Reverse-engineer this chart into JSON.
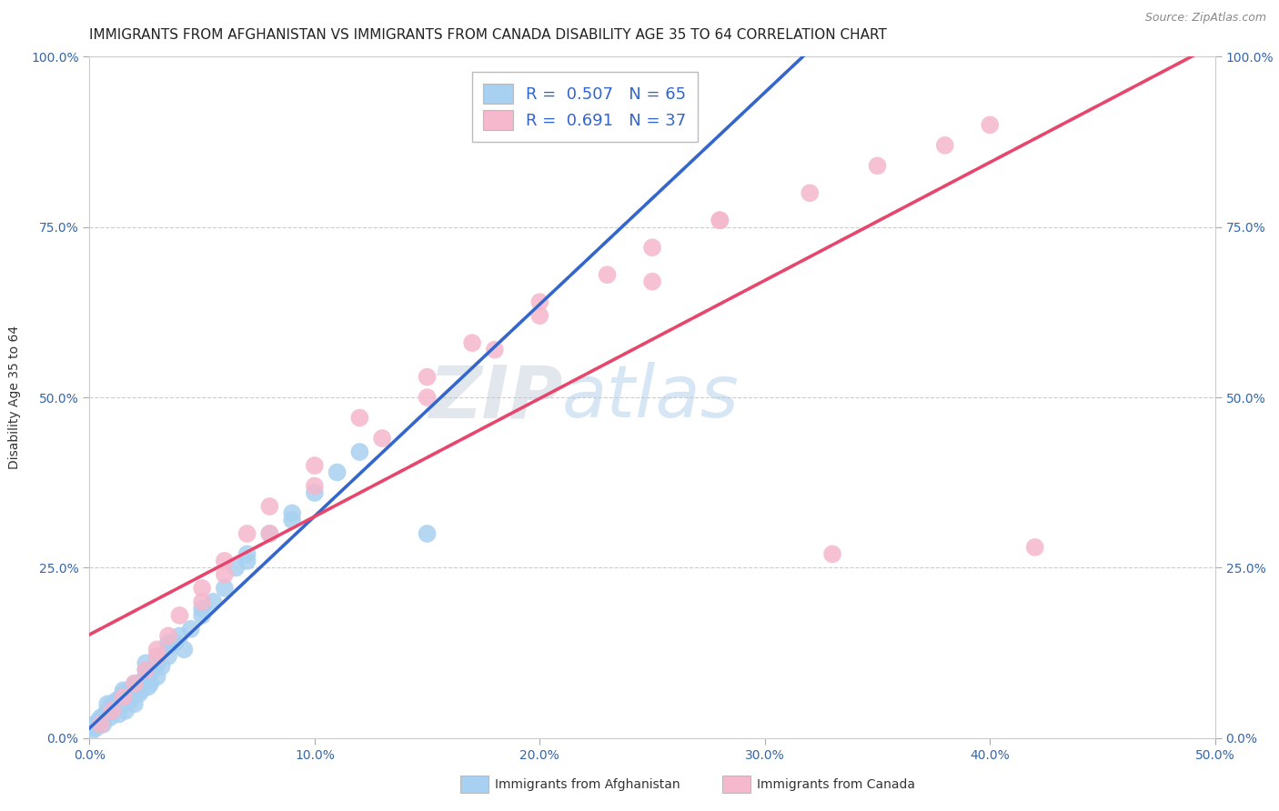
{
  "title": "IMMIGRANTS FROM AFGHANISTAN VS IMMIGRANTS FROM CANADA DISABILITY AGE 35 TO 64 CORRELATION CHART",
  "source": "Source: ZipAtlas.com",
  "yaxis_label": "Disability Age 35 to 64",
  "legend_bottom": [
    "Immigrants from Afghanistan",
    "Immigrants from Canada"
  ],
  "series": [
    {
      "name": "Immigrants from Afghanistan",
      "R": 0.507,
      "N": 65,
      "scatter_color": "#a8d0f0",
      "line_color": "#3366cc",
      "x": [
        0.1,
        0.2,
        0.3,
        0.4,
        0.5,
        0.6,
        0.7,
        0.8,
        0.9,
        1.0,
        1.0,
        1.1,
        1.2,
        1.3,
        1.4,
        1.5,
        1.5,
        1.6,
        1.7,
        1.8,
        1.9,
        2.0,
        2.0,
        2.1,
        2.2,
        2.3,
        2.4,
        2.5,
        2.6,
        2.7,
        2.8,
        3.0,
        3.0,
        3.2,
        3.5,
        3.5,
        3.8,
        4.0,
        4.2,
        4.5,
        5.0,
        5.5,
        6.0,
        6.5,
        7.0,
        8.0,
        9.0,
        10.0,
        11.0,
        12.0,
        0.5,
        1.0,
        1.5,
        2.0,
        2.5,
        3.0,
        0.3,
        0.8,
        1.5,
        2.5,
        3.5,
        5.0,
        7.0,
        9.0,
        15.0
      ],
      "y": [
        1.0,
        2.0,
        1.5,
        2.5,
        3.0,
        2.0,
        3.5,
        4.0,
        3.0,
        5.0,
        4.0,
        4.5,
        5.5,
        3.5,
        6.0,
        5.0,
        6.5,
        4.0,
        7.0,
        5.5,
        6.0,
        7.5,
        5.0,
        8.0,
        6.5,
        7.0,
        8.5,
        9.0,
        7.5,
        8.0,
        10.0,
        9.0,
        11.0,
        10.5,
        12.0,
        13.5,
        14.0,
        15.0,
        13.0,
        16.0,
        18.0,
        20.0,
        22.0,
        25.0,
        27.0,
        30.0,
        33.0,
        36.0,
        39.0,
        42.0,
        2.5,
        4.0,
        6.0,
        8.0,
        10.0,
        12.0,
        2.0,
        5.0,
        7.0,
        11.0,
        14.0,
        19.0,
        26.0,
        32.0,
        30.0
      ]
    },
    {
      "name": "Immigrants from Canada",
      "R": 0.691,
      "N": 37,
      "scatter_color": "#f5b8cc",
      "line_color": "#e8446c",
      "x": [
        0.5,
        1.0,
        1.5,
        2.0,
        2.5,
        3.0,
        3.5,
        4.0,
        5.0,
        6.0,
        7.0,
        8.0,
        10.0,
        12.0,
        15.0,
        17.0,
        20.0,
        23.0,
        25.0,
        28.0,
        32.0,
        35.0,
        38.0,
        40.0,
        3.0,
        6.0,
        10.0,
        15.0,
        20.0,
        28.0,
        5.0,
        8.0,
        13.0,
        18.0,
        25.0,
        33.0,
        42.0
      ],
      "y": [
        2.0,
        4.0,
        6.0,
        8.0,
        10.0,
        13.0,
        15.0,
        18.0,
        22.0,
        26.0,
        30.0,
        34.0,
        40.0,
        47.0,
        53.0,
        58.0,
        64.0,
        68.0,
        72.0,
        76.0,
        80.0,
        84.0,
        87.0,
        90.0,
        12.0,
        24.0,
        37.0,
        50.0,
        62.0,
        76.0,
        20.0,
        30.0,
        44.0,
        57.0,
        67.0,
        27.0,
        28.0
      ]
    }
  ],
  "background_color": "#ffffff",
  "xlim": [
    0,
    50
  ],
  "ylim": [
    0,
    100
  ],
  "xticks": [
    0,
    10,
    20,
    30,
    40,
    50
  ],
  "yticks": [
    0,
    25,
    50,
    75,
    100
  ],
  "xtick_labels": [
    "0.0%",
    "10.0%",
    "20.0%",
    "30.0%",
    "40.0%",
    "50.0%"
  ],
  "ytick_labels": [
    "0.0%",
    "25.0%",
    "50.0%",
    "75.0%",
    "100.0%"
  ],
  "grid_color": "#cccccc",
  "title_fontsize": 11,
  "axis_label_fontsize": 10,
  "tick_fontsize": 10,
  "legend_text_color": "#3366cc",
  "scatter_size": 200
}
